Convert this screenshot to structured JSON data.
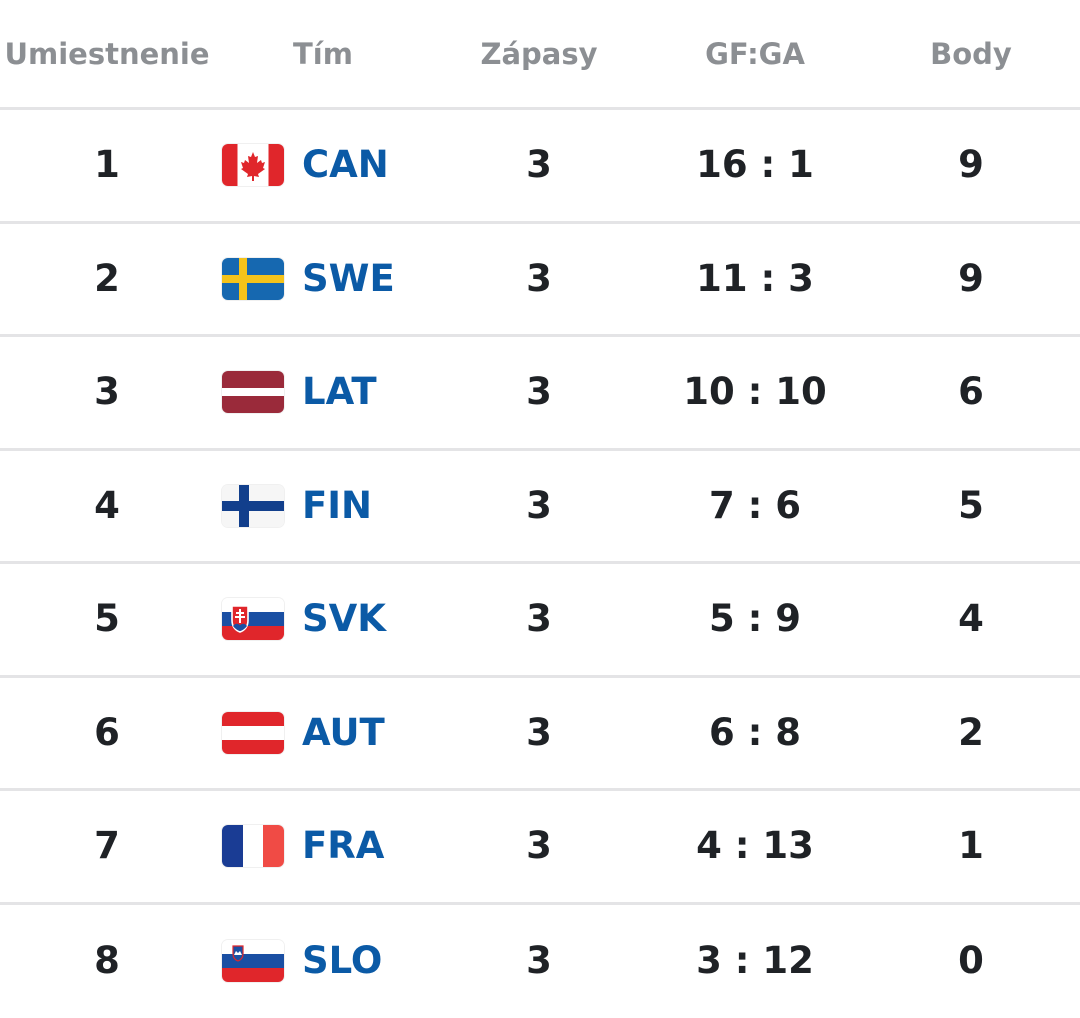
{
  "header": {
    "rank": "Umiestnenie",
    "team": "Tím",
    "games": "Zápasy",
    "score": "GF:GA",
    "points": "Body"
  },
  "rows": [
    {
      "rank": "1",
      "team": "CAN",
      "flag_icon": "canada-flag-icon",
      "games": "3",
      "score": "16 : 1",
      "points": "9"
    },
    {
      "rank": "2",
      "team": "SWE",
      "flag_icon": "sweden-flag-icon",
      "games": "3",
      "score": "11 : 3",
      "points": "9"
    },
    {
      "rank": "3",
      "team": "LAT",
      "flag_icon": "latvia-flag-icon",
      "games": "3",
      "score": "10 : 10",
      "points": "6"
    },
    {
      "rank": "4",
      "team": "FIN",
      "flag_icon": "finland-flag-icon",
      "games": "3",
      "score": "7 : 6",
      "points": "5"
    },
    {
      "rank": "5",
      "team": "SVK",
      "flag_icon": "slovakia-flag-icon",
      "games": "3",
      "score": "5 : 9",
      "points": "4"
    },
    {
      "rank": "6",
      "team": "AUT",
      "flag_icon": "austria-flag-icon",
      "games": "3",
      "score": "6 : 8",
      "points": "2"
    },
    {
      "rank": "7",
      "team": "FRA",
      "flag_icon": "france-flag-icon",
      "games": "3",
      "score": "4 : 13",
      "points": "1"
    },
    {
      "rank": "8",
      "team": "SLO",
      "flag_icon": "slovenia-flag-icon",
      "games": "3",
      "score": "3 : 12",
      "points": "0"
    }
  ],
  "colors": {
    "team_code": "#0b5aa6",
    "header_text": "#8c8f93",
    "body_text": "#1f2226",
    "divider": "#e4e4e6"
  }
}
